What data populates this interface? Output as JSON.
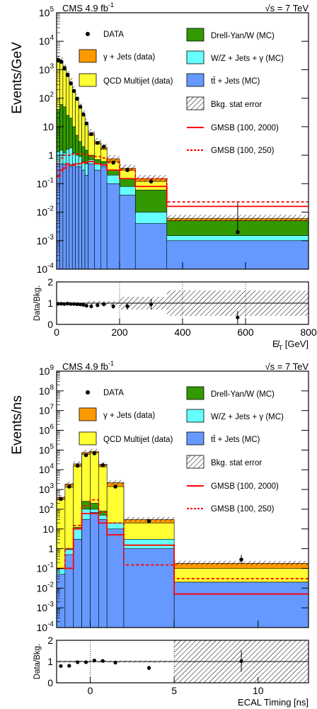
{
  "colors": {
    "qcd": "#ffff33",
    "gamma_jets": "#ff9900",
    "dy": "#339900",
    "wz": "#66ffff",
    "ttbar": "#6699ff",
    "gmsb": "#ff0000"
  },
  "chart_data": [
    {
      "type": "bar",
      "id": "met",
      "header_left": "CMS 4.9 fb",
      "header_left_sup": "-1",
      "header_right_sqrt": "√s",
      "header_right": " = 7 TeV",
      "ylabel": "Events/GeV",
      "xlabel": "E̸T [GeV]",
      "ratio_label": "Data/Bkg.",
      "xlim": [
        0,
        800
      ],
      "ylim_log": [
        -4,
        5
      ],
      "ratio_ylim": [
        0,
        2
      ],
      "y_ticks": [
        "10^-4",
        "10^-3",
        "10^-2",
        "10^-1",
        "1",
        "10",
        "10^2",
        "10^3",
        "10^4",
        "10^5"
      ],
      "x_ticks": [
        0,
        200,
        400,
        600,
        800
      ],
      "ratio_yticks": [
        0,
        1,
        2
      ],
      "bin_edges": [
        0,
        10,
        20,
        30,
        40,
        50,
        60,
        70,
        80,
        90,
        100,
        120,
        140,
        160,
        200,
        250,
        350,
        800
      ],
      "stack": {
        "ttbar": [
          0.5,
          0.5,
          0.5,
          0.5,
          0.4,
          0.5,
          0.4,
          0.4,
          0.3,
          0.2,
          0.5,
          0.3,
          0.4,
          0.1,
          0.04,
          0.004,
          0.001
        ],
        "wz": [
          1.3,
          1.5,
          1.2,
          1.6,
          1.8,
          1.2,
          1.0,
          0.9,
          0.6,
          0.5,
          0.7,
          0.5,
          0.5,
          0.2,
          0.08,
          0.01,
          0.0015
        ],
        "dy": [
          40,
          60,
          50,
          25,
          20,
          10,
          5,
          3,
          2,
          1.5,
          1.0,
          0.7,
          0.6,
          0.3,
          0.15,
          0.06,
          0.005
        ],
        "qcd": [
          2300,
          2000,
          1200,
          700,
          350,
          180,
          100,
          50,
          25,
          12,
          5,
          2.5,
          1.6,
          0.6,
          0.3,
          0.12,
          0.005
        ],
        "gamma_jets": [
          2500,
          2100,
          1300,
          750,
          380,
          200,
          110,
          55,
          28,
          14,
          6,
          3,
          1.9,
          0.75,
          0.35,
          0.15,
          0.006
        ]
      },
      "gmsb_100_2000": [
        0.18,
        0.3,
        0.35,
        0.5,
        0.45,
        0.45,
        0.5,
        0.5,
        0.55,
        0.55,
        0.6,
        0.5,
        0.45,
        0.3,
        0.15,
        0.08,
        0.016
      ],
      "gmsb_100_250": [
        0.5,
        0.8,
        1.0,
        1.0,
        1.0,
        1.1,
        1.1,
        1.1,
        1.1,
        1.1,
        0.95,
        0.9,
        0.8,
        0.55,
        0.3,
        0.15,
        0.023
      ],
      "data_x": [
        5,
        15,
        25,
        35,
        45,
        55,
        65,
        75,
        85,
        95,
        110,
        130,
        150,
        180,
        225,
        300,
        575
      ],
      "data_y": [
        2100,
        1900,
        1100,
        650,
        330,
        180,
        95,
        50,
        27,
        13,
        5.5,
        2.7,
        2.0,
        0.55,
        0.3,
        0.12,
        0.002
      ],
      "data_err_low": [
        0,
        0,
        0,
        0,
        0,
        0,
        0,
        0,
        0,
        0,
        0,
        0,
        0,
        0,
        0,
        0,
        0.0002
      ],
      "data_err_high": [
        0,
        0,
        0,
        0,
        0,
        0,
        0,
        0,
        0,
        0,
        0,
        0,
        0,
        0,
        0,
        0,
        0.02
      ],
      "ratio_x": [
        5,
        15,
        25,
        35,
        45,
        55,
        65,
        75,
        85,
        95,
        110,
        130,
        150,
        180,
        225,
        300,
        575
      ],
      "ratio_y": [
        0.97,
        0.97,
        0.96,
        0.98,
        0.96,
        0.96,
        0.95,
        0.94,
        0.92,
        0.88,
        0.85,
        0.9,
        0.95,
        0.85,
        0.85,
        0.95,
        0.33
      ],
      "ratio_err": [
        0.02,
        0.02,
        0.02,
        0.02,
        0.02,
        0.03,
        0.03,
        0.04,
        0.05,
        0.06,
        0.06,
        0.08,
        0.1,
        0.12,
        0.15,
        0.25,
        0.3
      ],
      "ratio_band_x": [
        0,
        100,
        200,
        350,
        800
      ],
      "ratio_band_half": [
        0.05,
        0.1,
        0.3,
        0.6,
        1.0
      ]
    },
    {
      "type": "bar",
      "id": "timing",
      "header_left": "CMS 4.9 fb",
      "header_left_sup": "-1",
      "header_right_sqrt": "√s",
      "header_right": " = 7 TeV",
      "ylabel": "Events/ns",
      "xlabel": "ECAL Timing [ns]",
      "ratio_label": "Data/Bkg.",
      "xlim": [
        -2,
        13
      ],
      "ylim_log": [
        -4,
        9
      ],
      "ratio_ylim": [
        0,
        2
      ],
      "y_ticks": [
        "10^-4",
        "10^-3",
        "10^-2",
        "10^-1",
        "1",
        "10",
        "10^2",
        "10^3",
        "10^4",
        "10^5",
        "10^6",
        "10^7",
        "10^8",
        "10^9"
      ],
      "x_ticks": [
        0,
        5,
        10
      ],
      "ratio_yticks": [
        0,
        1,
        2
      ],
      "bin_edges": [
        -2,
        -1.5,
        -1,
        -0.5,
        0,
        0.5,
        1,
        2,
        5,
        13
      ],
      "stack": {
        "ttbar": [
          0.05,
          0.5,
          3,
          30,
          70,
          30,
          10,
          1,
          0.02
        ],
        "wz": [
          0.1,
          0.9,
          10,
          100,
          100,
          50,
          20,
          3,
          0.0001
        ],
        "dy": [
          0.1,
          1,
          12,
          250,
          200,
          80,
          20,
          2,
          0.0001
        ],
        "qcd": [
          300,
          1300,
          15000,
          60000,
          70000,
          14000,
          1400,
          20,
          0.1
        ],
        "gamma_jets": [
          400,
          1900,
          20000,
          75000,
          85000,
          19000,
          2200,
          30,
          0.18
        ]
      },
      "gmsb_100_2000": [
        0.1,
        0.1,
        10,
        60,
        60,
        20,
        5,
        1.5,
        0.005
      ],
      "gmsb_100_250": [
        0.1,
        1,
        15,
        150,
        300,
        70,
        20,
        0.15,
        0.03
      ],
      "data_x": [
        -1.75,
        -1.25,
        -0.75,
        -0.25,
        0.25,
        0.75,
        1.5,
        3.5,
        9
      ],
      "data_y": [
        330,
        1400,
        16000,
        55000,
        68000,
        17000,
        1400,
        25,
        0.28
      ],
      "data_err_low": [
        0,
        0,
        0,
        0,
        0,
        0,
        0,
        0,
        0.1
      ],
      "data_err_high": [
        0,
        0,
        0,
        0,
        0,
        0,
        0,
        0,
        0.2
      ],
      "ratio_x": [
        -1.75,
        -1.25,
        -0.75,
        -0.25,
        0.25,
        0.75,
        1.5,
        3.5,
        9
      ],
      "ratio_y": [
        0.79,
        0.8,
        0.97,
        0.97,
        1.05,
        1.03,
        0.95,
        0.7,
        1.02
      ],
      "ratio_err": [
        0.05,
        0.03,
        0.02,
        0.02,
        0.02,
        0.02,
        0.04,
        0.1,
        0.5
      ],
      "ratio_band_x": [
        -2,
        5,
        13
      ],
      "ratio_band_half": [
        0.05,
        1.0
      ],
      "ratio_dotted_x": [
        0,
        5
      ]
    }
  ],
  "legend": {
    "data": "DATA",
    "gamma_jets": "γ + Jets (data)",
    "qcd": "QCD Multijet (data)",
    "dy": "Drell-Yan/W (MC)",
    "wz": "W/Z + Jets + γ (MC)",
    "ttbar": "tt̄ + Jets (MC)",
    "stat": "Bkg. stat error",
    "gmsb1": "GMSB (100, 2000)",
    "gmsb2": "GMSB (100, 250)"
  }
}
